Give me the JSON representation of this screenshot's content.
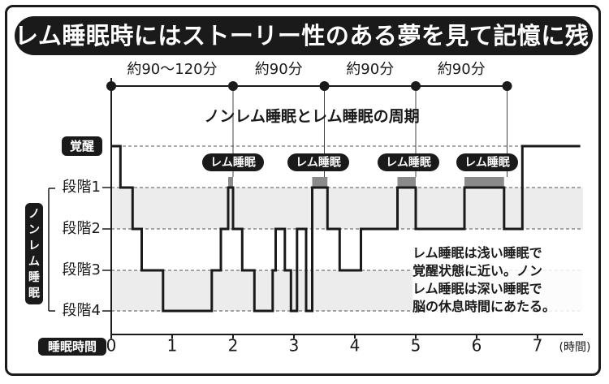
{
  "title": "レム睡眠時にはストーリー性のある夢を見て記憶に残りやすい",
  "chart_data": {
    "type": "line",
    "title": "ノンレム睡眠とレム睡眠の周期",
    "xlabel": "睡眠時間",
    "x_unit": "(時間)",
    "xlim": [
      0,
      7.7
    ],
    "x_ticks": [
      "0",
      "1",
      "2",
      "3",
      "4",
      "5",
      "6",
      "7"
    ],
    "y_categories": [
      "覚醒",
      "段階1",
      "段階2",
      "段階3",
      "段階4"
    ],
    "ylabel_group": "ノンレム睡眠",
    "series": [
      {
        "x": [
          0,
          0.15,
          0.15,
          0.35,
          0.35,
          0.5,
          0.5,
          0.85,
          0.85,
          1.65,
          1.65,
          1.8,
          1.8,
          1.92,
          1.92,
          2.0,
          2.0,
          2.15,
          2.15,
          2.35,
          2.35,
          2.65,
          2.65,
          2.7,
          2.7,
          2.85,
          2.85,
          2.95,
          2.95,
          3.05,
          3.05,
          3.2,
          3.2,
          3.3,
          3.3,
          3.55,
          3.55,
          3.75,
          3.75,
          4.1,
          4.1,
          4.2,
          4.2,
          4.7,
          4.7,
          5.0,
          5.0,
          5.8,
          5.8,
          6.45,
          6.45,
          6.75,
          6.75,
          7.7
        ],
        "y": [
          0,
          0,
          1,
          1,
          2,
          2,
          3,
          3,
          4,
          4,
          3,
          3,
          2,
          2,
          1,
          1,
          2,
          2,
          3,
          3,
          4,
          4,
          3,
          3,
          2,
          2,
          3,
          3,
          4,
          4,
          2,
          2,
          4,
          4,
          1,
          1,
          2,
          2,
          3,
          3,
          2,
          2,
          2,
          2,
          1,
          1,
          2,
          2,
          1,
          1,
          2,
          2,
          0,
          0
        ]
      }
    ],
    "rem_periods": [
      {
        "label": "レム睡眠",
        "start": 1.92,
        "end": 2.0
      },
      {
        "label": "レム睡眠",
        "start": 3.3,
        "end": 3.55
      },
      {
        "label": "レム睡眠",
        "start": 4.7,
        "end": 5.0
      },
      {
        "label": "レム睡眠",
        "start": 5.8,
        "end": 6.45
      }
    ],
    "cycles": [
      {
        "label": "約90〜120分",
        "start": 0,
        "end": 2.0
      },
      {
        "label": "約90分",
        "start": 2.0,
        "end": 3.5
      },
      {
        "label": "約90分",
        "start": 3.5,
        "end": 5.0
      },
      {
        "label": "約90分",
        "start": 5.0,
        "end": 6.5
      }
    ],
    "grid": true
  },
  "note_lines": [
    "レム睡眠は浅い睡眠で",
    "覚醒状態に近い。ノン",
    "レム睡眠は深い睡眠で",
    "脳の休息時間にあたる。"
  ],
  "colors": {
    "ink": "#1a1a1a",
    "band": "#ececec",
    "rem_fill": "#8a8a8a",
    "white": "#ffffff"
  }
}
